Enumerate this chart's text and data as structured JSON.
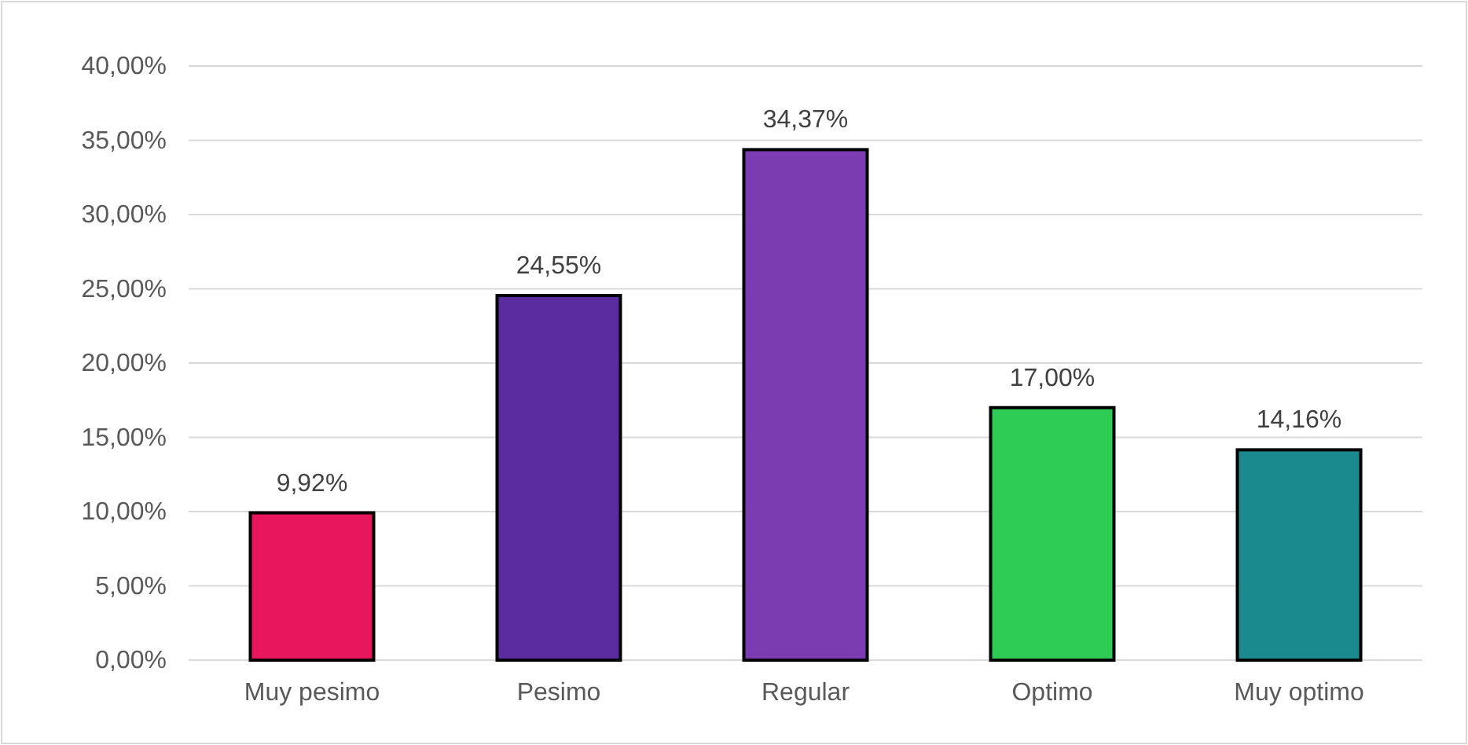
{
  "chart_data": {
    "type": "bar",
    "categories": [
      "Muy pesimo",
      "Pesimo",
      "Regular",
      "Optimo",
      "Muy optimo"
    ],
    "values": [
      9.92,
      24.55,
      34.37,
      17.0,
      14.16
    ],
    "colors": [
      "#e8175d",
      "#5b2c9f",
      "#7a3cb0",
      "#2ecc55",
      "#1b8a8f"
    ],
    "ylim": [
      0,
      40
    ],
    "yticks": [
      {
        "value": 0,
        "label": "0,00%"
      },
      {
        "value": 5,
        "label": "5,00%"
      },
      {
        "value": 10,
        "label": "10,00%"
      },
      {
        "value": 15,
        "label": "15,00%"
      },
      {
        "value": 20,
        "label": "20,00%"
      },
      {
        "value": 25,
        "label": "25,00%"
      },
      {
        "value": 30,
        "label": "30,00%"
      },
      {
        "value": 35,
        "label": "35,00%"
      },
      {
        "value": 40,
        "label": "40,00%"
      }
    ],
    "value_labels": [
      "9,92%",
      "24,55%",
      "34,37%",
      "17,00%",
      "14,16%"
    ],
    "grid": "y"
  }
}
